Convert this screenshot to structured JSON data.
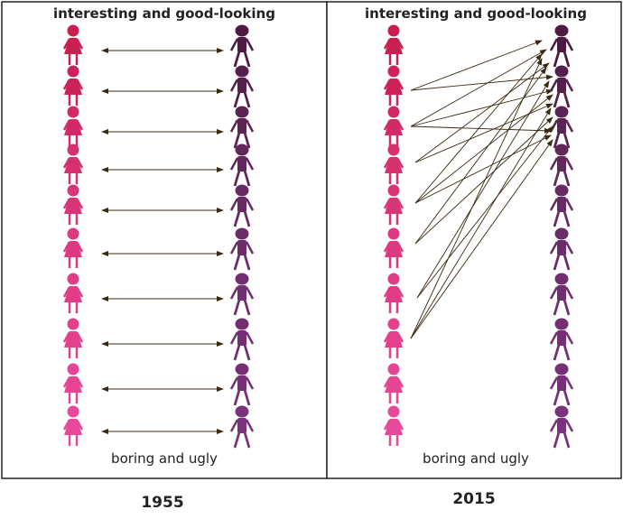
{
  "panels": [
    {
      "top_label": "interesting and good-looking",
      "bottom_label": "boring and ugly",
      "year": "1955"
    },
    {
      "top_label": "interesting and good-looking",
      "bottom_label": "boring and ugly",
      "year": "2015"
    }
  ]
}
